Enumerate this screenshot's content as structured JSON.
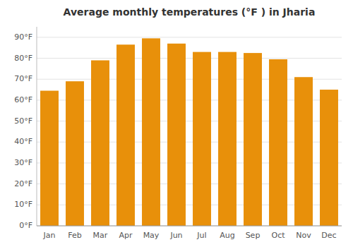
{
  "chart_data": {
    "type": "bar",
    "title": "Average monthly temperatures (°F ) in Jharia",
    "categories": [
      "Jan",
      "Feb",
      "Mar",
      "Apr",
      "May",
      "Jun",
      "Jul",
      "Aug",
      "Sep",
      "Oct",
      "Nov",
      "Dec"
    ],
    "values": [
      64.5,
      69.0,
      79.0,
      86.5,
      89.5,
      87.0,
      83.0,
      83.0,
      82.5,
      79.5,
      71.0,
      65.0
    ],
    "color": "#E8900A",
    "ylim": [
      0,
      95
    ],
    "yticks": [
      {
        "value": 0,
        "label": "0°F"
      },
      {
        "value": 10,
        "label": "10°F"
      },
      {
        "value": 20,
        "label": "20°F"
      },
      {
        "value": 30,
        "label": "30°F"
      },
      {
        "value": 40,
        "label": "40°F"
      },
      {
        "value": 50,
        "label": "50°F"
      },
      {
        "value": 60,
        "label": "60°F"
      },
      {
        "value": 70,
        "label": "70°F"
      },
      {
        "value": 80,
        "label": "80°F"
      },
      {
        "value": 90,
        "label": "90°F"
      }
    ],
    "grid": true
  }
}
